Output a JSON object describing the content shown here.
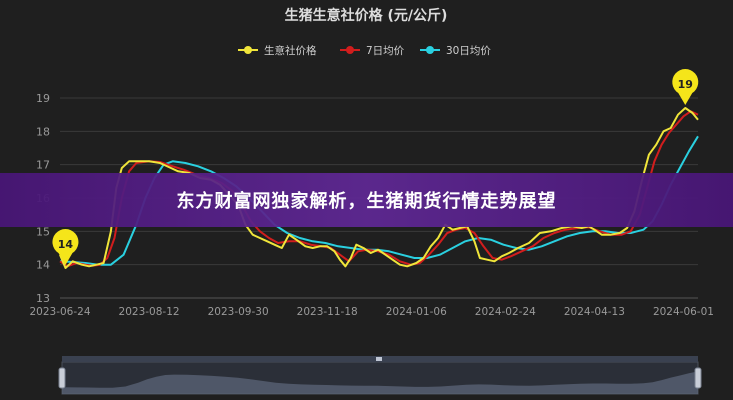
{
  "chart_data": {
    "type": "line",
    "title": "生猪生意社价格 (元/公斤)",
    "xlabel": "",
    "ylabel": "",
    "ylim": [
      13,
      19.6
    ],
    "yticks": [
      13,
      14,
      15,
      16,
      17,
      18,
      19
    ],
    "x_start": "2023-06-24",
    "x_end": "2024-06-09",
    "x_tick_labels": [
      "2023-06-24",
      "2023-08-12",
      "2023-09-30",
      "2023-11-18",
      "2024-01-06",
      "2024-02-24",
      "2024-04-13",
      "2024-06-01"
    ],
    "grid": true,
    "legend_position": "top",
    "series": [
      {
        "name": "生意社价格",
        "color": "#f0e53a",
        "points": [
          [
            "2023-06-24",
            14.3
          ],
          [
            "2023-06-27",
            13.9
          ],
          [
            "2023-07-01",
            14.1
          ],
          [
            "2023-07-06",
            14.0
          ],
          [
            "2023-07-10",
            13.95
          ],
          [
            "2023-07-14",
            14.0
          ],
          [
            "2023-07-18",
            14.05
          ],
          [
            "2023-07-22",
            15.0
          ],
          [
            "2023-07-25",
            16.3
          ],
          [
            "2023-07-28",
            16.9
          ],
          [
            "2023-08-01",
            17.1
          ],
          [
            "2023-08-06",
            17.1
          ],
          [
            "2023-08-12",
            17.1
          ],
          [
            "2023-08-18",
            17.05
          ],
          [
            "2023-08-24",
            16.9
          ],
          [
            "2023-08-28",
            16.8
          ],
          [
            "2023-09-03",
            16.75
          ],
          [
            "2023-09-09",
            16.6
          ],
          [
            "2023-09-15",
            16.55
          ],
          [
            "2023-09-20",
            16.4
          ],
          [
            "2023-09-25",
            16.1
          ],
          [
            "2023-09-30",
            15.8
          ],
          [
            "2023-10-04",
            15.2
          ],
          [
            "2023-10-08",
            14.9
          ],
          [
            "2023-10-12",
            14.8
          ],
          [
            "2023-10-16",
            14.7
          ],
          [
            "2023-10-20",
            14.6
          ],
          [
            "2023-10-24",
            14.5
          ],
          [
            "2023-10-28",
            14.9
          ],
          [
            "2023-11-01",
            14.75
          ],
          [
            "2023-11-06",
            14.55
          ],
          [
            "2023-11-10",
            14.5
          ],
          [
            "2023-11-14",
            14.55
          ],
          [
            "2023-11-18",
            14.55
          ],
          [
            "2023-11-22",
            14.4
          ],
          [
            "2023-11-25",
            14.15
          ],
          [
            "2023-11-28",
            13.95
          ],
          [
            "2023-12-01",
            14.2
          ],
          [
            "2023-12-04",
            14.6
          ],
          [
            "2023-12-08",
            14.5
          ],
          [
            "2023-12-12",
            14.35
          ],
          [
            "2023-12-16",
            14.45
          ],
          [
            "2023-12-20",
            14.3
          ],
          [
            "2023-12-24",
            14.15
          ],
          [
            "2023-12-28",
            14.0
          ],
          [
            "2024-01-01",
            13.95
          ],
          [
            "2024-01-06",
            14.05
          ],
          [
            "2024-01-10",
            14.2
          ],
          [
            "2024-01-14",
            14.55
          ],
          [
            "2024-01-18",
            14.8
          ],
          [
            "2024-01-22",
            15.2
          ],
          [
            "2024-01-26",
            15.05
          ],
          [
            "2024-01-30",
            15.1
          ],
          [
            "2024-02-03",
            15.15
          ],
          [
            "2024-02-07",
            14.7
          ],
          [
            "2024-02-10",
            14.2
          ],
          [
            "2024-02-14",
            14.15
          ],
          [
            "2024-02-18",
            14.1
          ],
          [
            "2024-02-22",
            14.25
          ],
          [
            "2024-02-26",
            14.35
          ],
          [
            "2024-03-02",
            14.5
          ],
          [
            "2024-03-08",
            14.65
          ],
          [
            "2024-03-14",
            14.95
          ],
          [
            "2024-03-20",
            15.0
          ],
          [
            "2024-03-26",
            15.1
          ],
          [
            "2024-04-01",
            15.15
          ],
          [
            "2024-04-06",
            15.1
          ],
          [
            "2024-04-10",
            15.15
          ],
          [
            "2024-04-13",
            15.05
          ],
          [
            "2024-04-17",
            14.9
          ],
          [
            "2024-04-22",
            14.9
          ],
          [
            "2024-04-27",
            14.95
          ],
          [
            "2024-05-01",
            15.1
          ],
          [
            "2024-05-05",
            15.6
          ],
          [
            "2024-05-09",
            16.5
          ],
          [
            "2024-05-13",
            17.3
          ],
          [
            "2024-05-17",
            17.6
          ],
          [
            "2024-05-21",
            18.0
          ],
          [
            "2024-05-25",
            18.1
          ],
          [
            "2024-05-29",
            18.5
          ],
          [
            "2024-06-02",
            18.7
          ],
          [
            "2024-06-06",
            18.55
          ],
          [
            "2024-06-09",
            18.35
          ]
        ]
      },
      {
        "name": "7日均价",
        "color": "#d11d1d",
        "points": [
          [
            "2023-06-24",
            14.1
          ],
          [
            "2023-06-28",
            13.95
          ],
          [
            "2023-07-03",
            14.05
          ],
          [
            "2023-07-08",
            14.0
          ],
          [
            "2023-07-12",
            13.97
          ],
          [
            "2023-07-16",
            14.0
          ],
          [
            "2023-07-20",
            14.2
          ],
          [
            "2023-07-24",
            14.8
          ],
          [
            "2023-07-28",
            16.0
          ],
          [
            "2023-08-01",
            16.8
          ],
          [
            "2023-08-05",
            17.05
          ],
          [
            "2023-08-12",
            17.1
          ],
          [
            "2023-08-18",
            17.08
          ],
          [
            "2023-08-25",
            16.95
          ],
          [
            "2023-08-31",
            16.85
          ],
          [
            "2023-09-07",
            16.7
          ],
          [
            "2023-09-14",
            16.6
          ],
          [
            "2023-09-21",
            16.45
          ],
          [
            "2023-09-27",
            16.2
          ],
          [
            "2023-10-02",
            15.8
          ],
          [
            "2023-10-07",
            15.3
          ],
          [
            "2023-10-12",
            15.0
          ],
          [
            "2023-10-17",
            14.8
          ],
          [
            "2023-10-22",
            14.65
          ],
          [
            "2023-10-28",
            14.7
          ],
          [
            "2023-11-03",
            14.7
          ],
          [
            "2023-11-09",
            14.6
          ],
          [
            "2023-11-15",
            14.55
          ],
          [
            "2023-11-20",
            14.5
          ],
          [
            "2023-11-25",
            14.3
          ],
          [
            "2023-11-30",
            14.1
          ],
          [
            "2023-12-05",
            14.4
          ],
          [
            "2023-12-10",
            14.45
          ],
          [
            "2023-12-16",
            14.4
          ],
          [
            "2023-12-22",
            14.3
          ],
          [
            "2023-12-28",
            14.1
          ],
          [
            "2024-01-03",
            14.0
          ],
          [
            "2024-01-08",
            14.05
          ],
          [
            "2024-01-13",
            14.3
          ],
          [
            "2024-01-18",
            14.6
          ],
          [
            "2024-01-23",
            14.95
          ],
          [
            "2024-01-28",
            15.05
          ],
          [
            "2024-02-02",
            15.1
          ],
          [
            "2024-02-07",
            14.95
          ],
          [
            "2024-02-12",
            14.55
          ],
          [
            "2024-02-17",
            14.2
          ],
          [
            "2024-02-22",
            14.15
          ],
          [
            "2024-02-27",
            14.25
          ],
          [
            "2024-03-04",
            14.4
          ],
          [
            "2024-03-10",
            14.55
          ],
          [
            "2024-03-16",
            14.8
          ],
          [
            "2024-03-22",
            14.95
          ],
          [
            "2024-03-28",
            15.05
          ],
          [
            "2024-04-04",
            15.1
          ],
          [
            "2024-04-10",
            15.12
          ],
          [
            "2024-04-16",
            15.0
          ],
          [
            "2024-04-22",
            14.9
          ],
          [
            "2024-04-28",
            14.9
          ],
          [
            "2024-05-03",
            15.0
          ],
          [
            "2024-05-08",
            15.5
          ],
          [
            "2024-05-12",
            16.3
          ],
          [
            "2024-05-16",
            17.1
          ],
          [
            "2024-05-20",
            17.6
          ],
          [
            "2024-05-24",
            17.95
          ],
          [
            "2024-05-28",
            18.2
          ],
          [
            "2024-06-01",
            18.45
          ],
          [
            "2024-06-05",
            18.6
          ],
          [
            "2024-06-09",
            18.5
          ]
        ]
      },
      {
        "name": "30日均价",
        "color": "#2ad0e0",
        "points": [
          [
            "2023-06-24",
            14.1
          ],
          [
            "2023-07-01",
            14.08
          ],
          [
            "2023-07-08",
            14.05
          ],
          [
            "2023-07-15",
            14.0
          ],
          [
            "2023-07-22",
            14.0
          ],
          [
            "2023-07-29",
            14.3
          ],
          [
            "2023-08-05",
            15.2
          ],
          [
            "2023-08-10",
            16.0
          ],
          [
            "2023-08-15",
            16.6
          ],
          [
            "2023-08-20",
            17.0
          ],
          [
            "2023-08-25",
            17.1
          ],
          [
            "2023-09-01",
            17.05
          ],
          [
            "2023-09-08",
            16.95
          ],
          [
            "2023-09-15",
            16.8
          ],
          [
            "2023-09-22",
            16.6
          ],
          [
            "2023-09-29",
            16.35
          ],
          [
            "2023-10-06",
            16.0
          ],
          [
            "2023-10-13",
            15.6
          ],
          [
            "2023-10-20",
            15.2
          ],
          [
            "2023-10-27",
            14.95
          ],
          [
            "2023-11-03",
            14.8
          ],
          [
            "2023-11-10",
            14.7
          ],
          [
            "2023-11-17",
            14.65
          ],
          [
            "2023-11-24",
            14.55
          ],
          [
            "2023-12-01",
            14.5
          ],
          [
            "2023-12-08",
            14.45
          ],
          [
            "2023-12-15",
            14.45
          ],
          [
            "2023-12-22",
            14.4
          ],
          [
            "2023-12-29",
            14.3
          ],
          [
            "2024-01-05",
            14.2
          ],
          [
            "2024-01-12",
            14.2
          ],
          [
            "2024-01-19",
            14.3
          ],
          [
            "2024-01-26",
            14.5
          ],
          [
            "2024-02-02",
            14.7
          ],
          [
            "2024-02-09",
            14.8
          ],
          [
            "2024-02-16",
            14.75
          ],
          [
            "2024-02-23",
            14.6
          ],
          [
            "2024-03-01",
            14.5
          ],
          [
            "2024-03-08",
            14.45
          ],
          [
            "2024-03-15",
            14.55
          ],
          [
            "2024-03-22",
            14.7
          ],
          [
            "2024-03-29",
            14.85
          ],
          [
            "2024-04-05",
            14.95
          ],
          [
            "2024-04-12",
            15.0
          ],
          [
            "2024-04-19",
            15.0
          ],
          [
            "2024-04-26",
            14.95
          ],
          [
            "2024-05-03",
            14.95
          ],
          [
            "2024-05-10",
            15.05
          ],
          [
            "2024-05-15",
            15.3
          ],
          [
            "2024-05-20",
            15.8
          ],
          [
            "2024-05-25",
            16.4
          ],
          [
            "2024-05-30",
            16.9
          ],
          [
            "2024-06-04",
            17.4
          ],
          [
            "2024-06-09",
            17.85
          ]
        ]
      }
    ],
    "annotations": [
      {
        "text": "14",
        "date": "2023-06-27",
        "value": 13.9,
        "color": "#f5e51a"
      },
      {
        "text": "19",
        "date": "2024-06-02",
        "value": 18.7,
        "color": "#f5e51a"
      }
    ],
    "slider": {
      "type": "data-zoom",
      "range_percent": [
        0,
        100
      ]
    }
  },
  "banner": {
    "text": "东方财富网独家解析，生猪期货行情走势展望"
  }
}
